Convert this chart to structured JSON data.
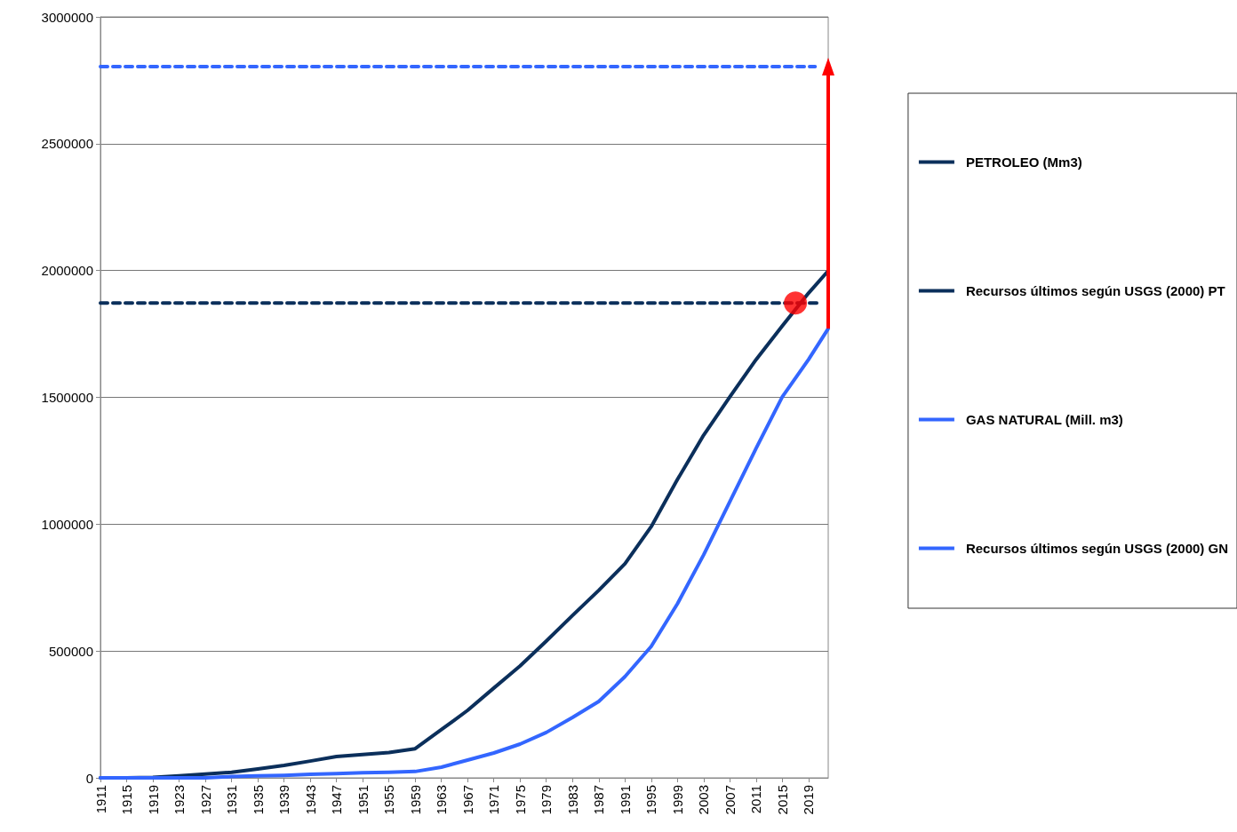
{
  "chart_data": {
    "type": "line",
    "series": [
      {
        "name": "PETROLEO (Mm3)",
        "color": "#0b2f5b",
        "line_style": "solid",
        "x": [
          1911,
          1915,
          1919,
          1923,
          1927,
          1931,
          1935,
          1939,
          1943,
          1947,
          1951,
          1955,
          1959,
          1963,
          1967,
          1971,
          1975,
          1979,
          1983,
          1987,
          1991,
          1995,
          1999,
          2003,
          2007,
          2011,
          2015,
          2019,
          2022
        ],
        "values": [
          0,
          0,
          2000,
          8000,
          15000,
          22000,
          35000,
          49000,
          66000,
          84000,
          92000,
          100000,
          115000,
          190000,
          266000,
          354000,
          441000,
          539000,
          640000,
          739000,
          844000,
          990000,
          1176000,
          1351000,
          1502000,
          1649000,
          1782000,
          1911000,
          1999000
        ]
      },
      {
        "name": "Recursos últimos según USGS (2000) PT",
        "color": "#0b2f5b",
        "line_style": "dashed",
        "x": [
          1911,
          2021
        ],
        "values": [
          1872000,
          1872000
        ]
      },
      {
        "name": "GAS NATURAL (Mill. m3)",
        "color": "#3366ff",
        "line_style": "solid",
        "x": [
          1911,
          1915,
          1919,
          1923,
          1927,
          1931,
          1935,
          1939,
          1943,
          1947,
          1951,
          1955,
          1959,
          1963,
          1967,
          1971,
          1975,
          1979,
          1983,
          1987,
          1991,
          1995,
          1999,
          2003,
          2007,
          2011,
          2015,
          2019,
          2022
        ],
        "values": [
          0,
          0,
          0,
          0,
          0,
          5000,
          8000,
          10000,
          14000,
          17000,
          20000,
          22000,
          25000,
          42000,
          70000,
          98000,
          133000,
          179000,
          238000,
          301000,
          399000,
          518000,
          686000,
          879000,
          1089000,
          1299000,
          1502000,
          1649000,
          1771000
        ]
      },
      {
        "name": "Recursos últimos según USGS (2000) GN",
        "color": "#3366ff",
        "line_style": "dashed",
        "x": [
          1911,
          2020
        ],
        "values": [
          2804000,
          2804000
        ]
      },
      {
        "type": "scatter",
        "color": "#ff0000",
        "marker": "circle",
        "x": [
          2017
        ],
        "values": [
          1872000
        ]
      }
    ],
    "xlim": [
      1911,
      2022
    ],
    "xticks": [
      1911,
      1915,
      1919,
      1923,
      1927,
      1931,
      1935,
      1939,
      1943,
      1947,
      1951,
      1955,
      1959,
      1963,
      1967,
      1971,
      1975,
      1979,
      1983,
      1987,
      1991,
      1995,
      1999,
      2003,
      2007,
      2011,
      2015,
      2019
    ],
    "ylim": [
      0,
      3000000
    ],
    "yticks": [
      0,
      500000,
      1000000,
      1500000,
      2000000,
      2500000,
      3000000
    ],
    "grid": "y",
    "legend": "right",
    "marker": "none"
  }
}
